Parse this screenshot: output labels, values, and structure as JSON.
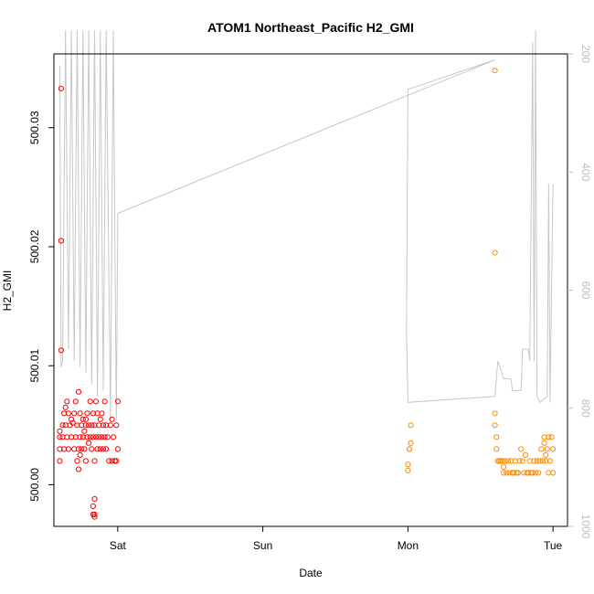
{
  "chart_data": {
    "type": "scatter",
    "title": "ATOM1 Northeast_Pacific H2_GMI",
    "xlabel": "Date",
    "ylabel": "H2_GMI",
    "x_tick_labels": [
      "Sat",
      "Sun",
      "Mon",
      "Tue"
    ],
    "x_tick_days": [
      1,
      2,
      3,
      4
    ],
    "xlim_days": [
      0.56,
      4.1
    ],
    "ylim": [
      499.9965,
      500.0362
    ],
    "y_ticks": [
      500.0,
      500.01,
      500.02,
      500.03
    ],
    "y_tick_labels": [
      "500.00",
      "500.01",
      "500.02",
      "500.03"
    ],
    "secondary_axis": {
      "label_color": "#bdbdbd",
      "reversed": true,
      "lim": [
        1000,
        200
      ],
      "ticks": [
        200,
        400,
        600,
        800,
        1000
      ],
      "tick_labels": [
        "200",
        "400",
        "600",
        "800",
        "1000"
      ]
    },
    "grid": false,
    "series": [
      {
        "color": "#ff0000",
        "marker": "circle-open",
        "points": [
          [
            0.61,
            500.0333
          ],
          [
            0.61,
            500.0205
          ],
          [
            0.61,
            500.0113
          ],
          [
            0.6,
            500.0045
          ],
          [
            0.6,
            500.004
          ],
          [
            0.6,
            500.003
          ],
          [
            0.6,
            500.002
          ],
          [
            0.62,
            500.004
          ],
          [
            0.62,
            500.005
          ],
          [
            0.63,
            500.003
          ],
          [
            0.63,
            500.006
          ],
          [
            0.64,
            500.005
          ],
          [
            0.64,
            500.0065
          ],
          [
            0.65,
            500.007
          ],
          [
            0.65,
            500.004
          ],
          [
            0.66,
            500.006
          ],
          [
            0.66,
            500.003
          ],
          [
            0.67,
            500.005
          ],
          [
            0.68,
            500.004
          ],
          [
            0.68,
            500.0055
          ],
          [
            0.69,
            500.0052
          ],
          [
            0.7,
            500.006
          ],
          [
            0.7,
            500.003
          ],
          [
            0.71,
            500.007
          ],
          [
            0.71,
            500.004
          ],
          [
            0.72,
            500.005
          ],
          [
            0.72,
            500.002
          ],
          [
            0.73,
            500.0078
          ],
          [
            0.73,
            500.003
          ],
          [
            0.73,
            500.0013
          ],
          [
            0.74,
            500.006
          ],
          [
            0.74,
            500.004
          ],
          [
            0.74,
            500.0025
          ],
          [
            0.75,
            500.005
          ],
          [
            0.75,
            500.003
          ],
          [
            0.76,
            500.004
          ],
          [
            0.76,
            500.0055
          ],
          [
            0.77,
            500.0045
          ],
          [
            0.77,
            500.003
          ],
          [
            0.78,
            500.0055
          ],
          [
            0.78,
            500.002
          ],
          [
            0.78,
            500.005
          ],
          [
            0.79,
            500.004
          ],
          [
            0.79,
            500.006
          ],
          [
            0.8,
            500.0035
          ],
          [
            0.8,
            500.005
          ],
          [
            0.81,
            500.004
          ],
          [
            0.81,
            500.007
          ],
          [
            0.82,
            500.005
          ],
          [
            0.82,
            500.003
          ],
          [
            0.83,
            500.006
          ],
          [
            0.83,
            500.004
          ],
          [
            0.84,
            500.002
          ],
          [
            0.84,
            500.005
          ],
          [
            0.85,
            500.004
          ],
          [
            0.85,
            500.007
          ],
          [
            0.86,
            500.003
          ],
          [
            0.86,
            500.006
          ],
          [
            0.87,
            500.005
          ],
          [
            0.87,
            500.004
          ],
          [
            0.88,
            500.0055
          ],
          [
            0.88,
            500.003
          ],
          [
            0.89,
            500.004
          ],
          [
            0.89,
            500.006
          ],
          [
            0.9,
            500.005
          ],
          [
            0.9,
            500.003
          ],
          [
            0.91,
            500.004
          ],
          [
            0.91,
            500.007
          ],
          [
            0.92,
            500.005
          ],
          [
            0.92,
            500.003
          ],
          [
            0.93,
            500.004
          ],
          [
            0.94,
            500.002
          ],
          [
            0.95,
            500.005
          ],
          [
            0.96,
            500.0055
          ],
          [
            0.97,
            500.004
          ],
          [
            0.98,
            500.002
          ],
          [
            0.99,
            500.005
          ],
          [
            1.0,
            500.003
          ],
          [
            1.0,
            500.007
          ],
          [
            0.84,
            499.9988
          ],
          [
            0.83,
            499.9982
          ],
          [
            0.84,
            499.9975
          ],
          [
            0.84,
            499.9973
          ],
          [
            0.83,
            499.9975
          ],
          [
            0.96,
            500.002
          ],
          [
            0.99,
            500.002
          ]
        ]
      },
      {
        "color": "#ff8c00",
        "marker": "circle-open",
        "points": [
          [
            3.0,
            500.0012
          ],
          [
            3.0,
            500.0017
          ],
          [
            3.01,
            500.003
          ],
          [
            3.01,
            500.003
          ],
          [
            3.02,
            500.005
          ],
          [
            3.02,
            500.0035
          ],
          [
            3.6,
            500.0348
          ],
          [
            3.6,
            500.0195
          ],
          [
            3.6,
            500.006
          ],
          [
            3.6,
            500.005
          ],
          [
            3.61,
            500.004
          ],
          [
            3.61,
            500.003
          ],
          [
            3.62,
            500.002
          ],
          [
            3.63,
            500.002
          ],
          [
            3.64,
            500.002
          ],
          [
            3.65,
            500.002
          ],
          [
            3.66,
            500.001
          ],
          [
            3.66,
            500.0015
          ],
          [
            3.67,
            500.002
          ],
          [
            3.68,
            500.001
          ],
          [
            3.69,
            500.002
          ],
          [
            3.7,
            500.001
          ],
          [
            3.71,
            500.002
          ],
          [
            3.72,
            500.001
          ],
          [
            3.73,
            500.001
          ],
          [
            3.74,
            500.002
          ],
          [
            3.75,
            500.001
          ],
          [
            3.76,
            500.001
          ],
          [
            3.77,
            500.002
          ],
          [
            3.78,
            500.003
          ],
          [
            3.79,
            500.002
          ],
          [
            3.8,
            500.001
          ],
          [
            3.81,
            500.0025
          ],
          [
            3.82,
            500.001
          ],
          [
            3.83,
            500.001
          ],
          [
            3.84,
            500.002
          ],
          [
            3.85,
            500.001
          ],
          [
            3.86,
            500.001
          ],
          [
            3.87,
            500.002
          ],
          [
            3.88,
            500.001
          ],
          [
            3.89,
            500.002
          ],
          [
            3.9,
            500.001
          ],
          [
            3.91,
            500.002
          ],
          [
            3.92,
            500.003
          ],
          [
            3.93,
            500.002
          ],
          [
            3.94,
            500.004
          ],
          [
            3.94,
            500.0035
          ],
          [
            3.95,
            500.002
          ],
          [
            3.95,
            500.0025
          ],
          [
            3.96,
            500.003
          ],
          [
            3.97,
            500.004
          ],
          [
            3.97,
            500.001
          ],
          [
            3.98,
            500.002
          ],
          [
            3.99,
            500.004
          ],
          [
            4.0,
            500.003
          ],
          [
            4.0,
            500.001
          ]
        ]
      },
      {
        "type": "line",
        "axis": "secondary",
        "color": "#c8c8c8",
        "points": [
          [
            0.6,
            220
          ],
          [
            0.61,
            730
          ],
          [
            0.62,
            720
          ],
          [
            0.64,
            160
          ],
          [
            0.66,
            700
          ],
          [
            0.68,
            160
          ],
          [
            0.7,
            720
          ],
          [
            0.72,
            160
          ],
          [
            0.74,
            730
          ],
          [
            0.76,
            160
          ],
          [
            0.78,
            740
          ],
          [
            0.8,
            160
          ],
          [
            0.82,
            760
          ],
          [
            0.84,
            160
          ],
          [
            0.86,
            780
          ],
          [
            0.88,
            160
          ],
          [
            0.9,
            770
          ],
          [
            0.92,
            160
          ],
          [
            0.95,
            820
          ],
          [
            0.97,
            160
          ],
          [
            0.99,
            820
          ],
          [
            1.0,
            470
          ],
          [
            3.6,
            210
          ],
          [
            3.0,
            260
          ],
          [
            2.99,
            670
          ],
          [
            3.0,
            790
          ],
          [
            3.6,
            780
          ],
          [
            3.62,
            720
          ],
          [
            3.66,
            750
          ],
          [
            3.71,
            750
          ],
          [
            3.72,
            770
          ],
          [
            3.78,
            770
          ],
          [
            3.79,
            700
          ],
          [
            3.83,
            700
          ],
          [
            3.84,
            720
          ],
          [
            3.86,
            180
          ],
          [
            3.87,
            720
          ],
          [
            3.88,
            160
          ],
          [
            3.89,
            780
          ],
          [
            3.91,
            790
          ],
          [
            3.96,
            780
          ],
          [
            3.97,
            420
          ],
          [
            3.98,
            790
          ],
          [
            4.0,
            420
          ]
        ]
      }
    ]
  }
}
